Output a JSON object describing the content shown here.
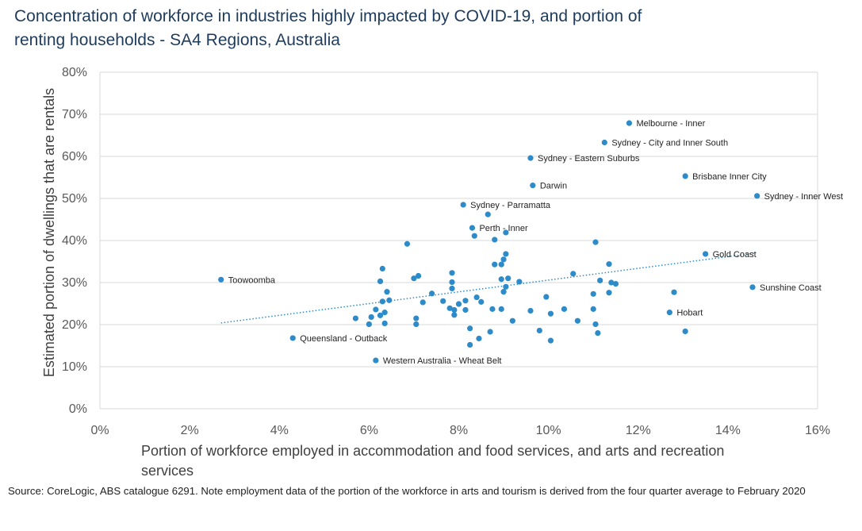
{
  "title_line1": "Concentration of workforce in industries highly impacted by COVID-19, and portion of",
  "title_line2": "renting households - SA4 Regions, Australia",
  "source": "Source: CoreLogic, ABS catalogue 6291. Note employment  data of the portion of the workforce in arts and tourism is derived from the four quarter average to February 2020",
  "chart_data": {
    "type": "scatter",
    "xlabel_line1": "Portion of workforce employed in accommodation and food services, and arts and recreation",
    "xlabel_line2": "services",
    "ylabel": "Estimated portion of dwellings that are rentals",
    "xlim": [
      0,
      16
    ],
    "ylim": [
      0,
      80
    ],
    "x_ticks": [
      "0%",
      "2%",
      "4%",
      "6%",
      "8%",
      "10%",
      "12%",
      "14%",
      "16%"
    ],
    "y_ticks": [
      "0%",
      "10%",
      "20%",
      "30%",
      "40%",
      "50%",
      "60%",
      "70%",
      "80%"
    ],
    "gridlines": "horizontal",
    "marker_color": "#2e8bc9",
    "trendline": {
      "style": "dotted",
      "color": "#2e8bc9",
      "x": [
        2.7,
        14.6
      ],
      "y": [
        20.4,
        37.0
      ]
    },
    "labelled_points": [
      {
        "label": "Melbourne - Inner",
        "x": 11.8,
        "y": 67.9
      },
      {
        "label": "Sydney - City and Inner South",
        "x": 11.25,
        "y": 63.3
      },
      {
        "label": "Sydney - Eastern Suburbs",
        "x": 9.6,
        "y": 59.6
      },
      {
        "label": "Brisbane Inner City",
        "x": 13.05,
        "y": 55.3
      },
      {
        "label": "Darwin",
        "x": 9.65,
        "y": 53.1
      },
      {
        "label": "Sydney - Inner West",
        "x": 14.65,
        "y": 50.6
      },
      {
        "label": "Sydney - Parramatta",
        "x": 8.1,
        "y": 48.5
      },
      {
        "label": "Perth - Inner",
        "x": 8.3,
        "y": 43.0
      },
      {
        "label": "Gold Coast",
        "x": 13.5,
        "y": 36.8
      },
      {
        "label": "Toowoomba",
        "x": 2.7,
        "y": 30.7
      },
      {
        "label": "Sunshine Coast",
        "x": 14.55,
        "y": 28.9
      },
      {
        "label": "Hobart",
        "x": 12.7,
        "y": 22.9
      },
      {
        "label": "Queensland - Outback",
        "x": 4.3,
        "y": 16.8
      },
      {
        "label": "Western Australia - Wheat Belt",
        "x": 6.15,
        "y": 11.5
      }
    ],
    "other_points": [
      [
        8.65,
        46.2
      ],
      [
        6.85,
        39.2
      ],
      [
        8.35,
        41.1
      ],
      [
        8.8,
        40.2
      ],
      [
        9.05,
        41.9
      ],
      [
        11.05,
        39.6
      ],
      [
        9.05,
        36.8
      ],
      [
        9.0,
        35.5
      ],
      [
        8.8,
        34.3
      ],
      [
        8.95,
        34.3
      ],
      [
        6.3,
        33.3
      ],
      [
        7.85,
        32.3
      ],
      [
        10.55,
        32.1
      ],
      [
        11.35,
        34.4
      ],
      [
        7.0,
        31.0
      ],
      [
        7.1,
        31.6
      ],
      [
        8.95,
        30.8
      ],
      [
        9.1,
        31.0
      ],
      [
        9.35,
        30.2
      ],
      [
        6.25,
        30.3
      ],
      [
        7.85,
        30.1
      ],
      [
        11.15,
        30.5
      ],
      [
        11.4,
        30.0
      ],
      [
        11.5,
        29.7
      ],
      [
        9.05,
        29.0
      ],
      [
        9.0,
        27.8
      ],
      [
        7.85,
        28.6
      ],
      [
        6.4,
        27.8
      ],
      [
        7.4,
        27.4
      ],
      [
        11.35,
        27.6
      ],
      [
        11.0,
        27.3
      ],
      [
        12.8,
        27.7
      ],
      [
        9.95,
        26.6
      ],
      [
        6.45,
        25.8
      ],
      [
        6.3,
        25.5
      ],
      [
        7.2,
        25.3
      ],
      [
        7.65,
        25.6
      ],
      [
        8.15,
        25.7
      ],
      [
        8.4,
        26.5
      ],
      [
        8.5,
        25.4
      ],
      [
        8.0,
        24.9
      ],
      [
        7.8,
        23.9
      ],
      [
        7.9,
        23.5
      ],
      [
        8.15,
        23.5
      ],
      [
        8.75,
        23.7
      ],
      [
        8.95,
        23.7
      ],
      [
        9.6,
        23.3
      ],
      [
        10.35,
        23.7
      ],
      [
        11.0,
        23.7
      ],
      [
        6.15,
        23.6
      ],
      [
        6.35,
        22.9
      ],
      [
        6.25,
        22.2
      ],
      [
        7.9,
        22.3
      ],
      [
        6.05,
        21.8
      ],
      [
        5.7,
        21.5
      ],
      [
        7.05,
        21.5
      ],
      [
        9.2,
        20.9
      ],
      [
        10.05,
        22.6
      ],
      [
        10.65,
        20.9
      ],
      [
        11.05,
        20.1
      ],
      [
        6.0,
        20.1
      ],
      [
        6.35,
        20.3
      ],
      [
        7.05,
        20.1
      ],
      [
        8.25,
        19.1
      ],
      [
        8.7,
        18.3
      ],
      [
        9.8,
        18.6
      ],
      [
        11.1,
        18.0
      ],
      [
        13.05,
        18.4
      ],
      [
        8.45,
        16.7
      ],
      [
        8.25,
        15.2
      ],
      [
        10.05,
        16.2
      ]
    ]
  }
}
